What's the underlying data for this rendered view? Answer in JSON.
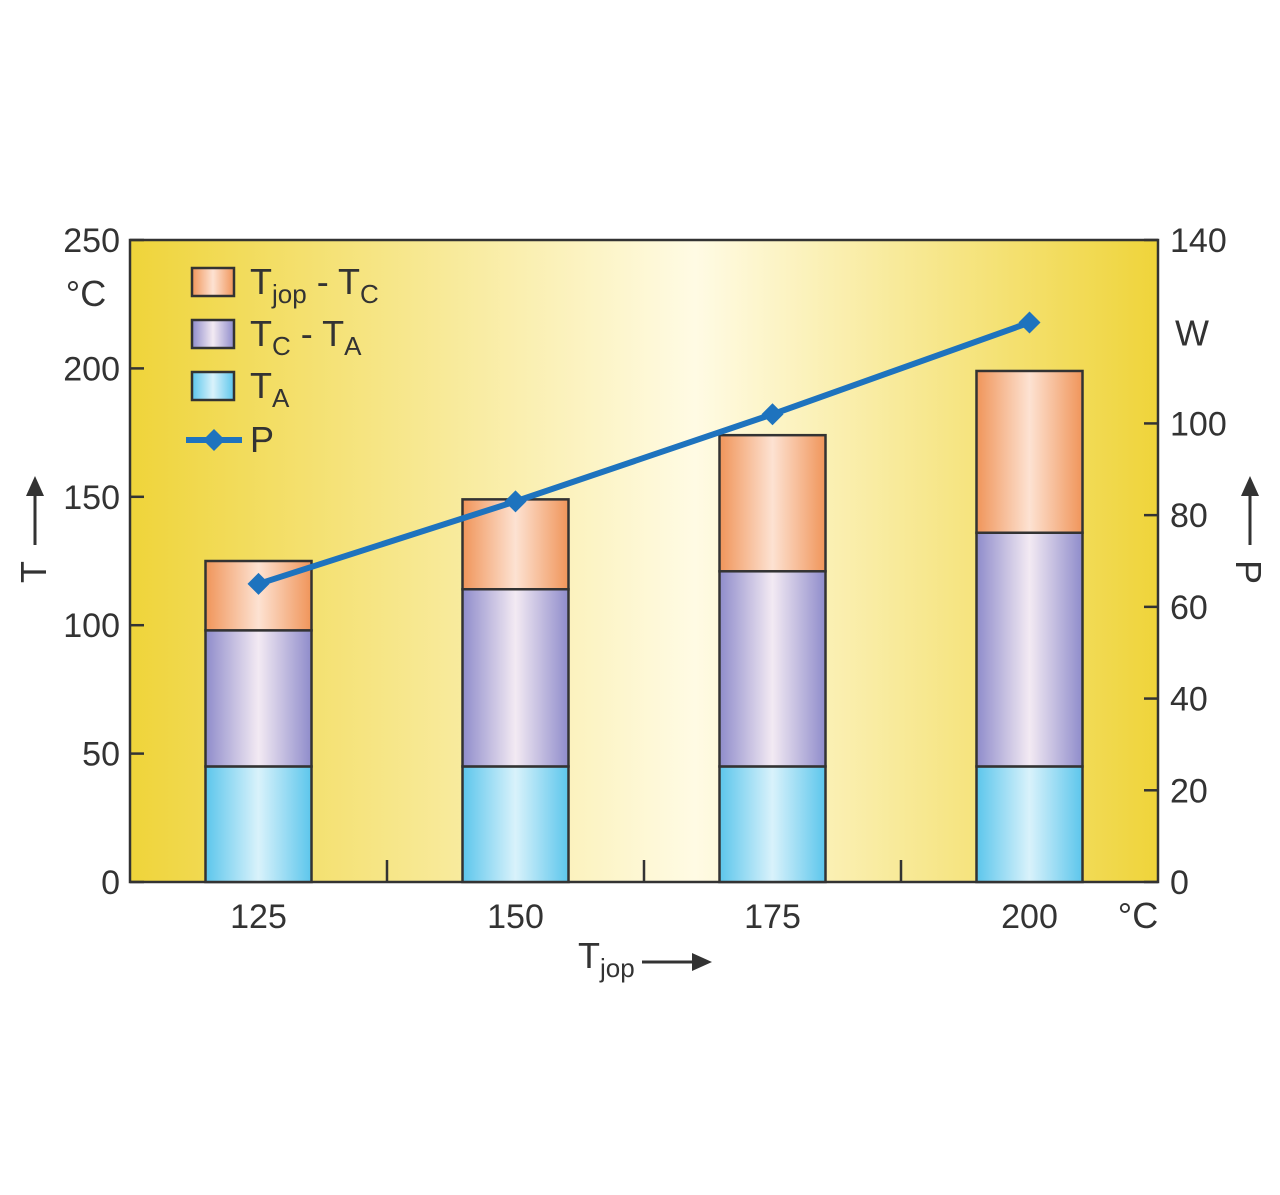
{
  "chart_data": {
    "type": "bar",
    "stacked": true,
    "categories": [
      "125",
      "150",
      "175",
      "200"
    ],
    "x_axis": {
      "label_main": "T",
      "label_sub": "jop",
      "unit": "°C"
    },
    "y_left": {
      "label": "T",
      "unit": "°C",
      "ylim": [
        0,
        250
      ],
      "ticks": [
        0,
        50,
        100,
        150,
        200,
        250
      ]
    },
    "y_right": {
      "label": "P",
      "unit": "W",
      "ylim": [
        0,
        140
      ],
      "ticks": [
        0,
        20,
        40,
        60,
        80,
        100,
        140
      ]
    },
    "series": [
      {
        "key": "ta",
        "name_main": "T",
        "name_sub": "A",
        "values": [
          45,
          45,
          45,
          45
        ],
        "color": "#7fd3f2"
      },
      {
        "key": "tc_ta",
        "name_main": "T",
        "name_sub": "C",
        "name_main2": "T",
        "name_sub2": "A",
        "values": [
          53,
          69,
          76,
          91
        ],
        "color": "#a9a6d6"
      },
      {
        "key": "tjop_tc",
        "name_main": "T",
        "name_sub": "jop",
        "name_main2": "T",
        "name_sub2": "C",
        "values": [
          27,
          35,
          53,
          63
        ],
        "color": "#f2a76e"
      }
    ],
    "line": {
      "name": "P",
      "axis": "right",
      "values": [
        65,
        83,
        102,
        122
      ],
      "color": "#1e73be"
    },
    "legend_placement": "top-left",
    "background": [
      "#f0d63c",
      "#fffbe2"
    ],
    "grid": false
  }
}
